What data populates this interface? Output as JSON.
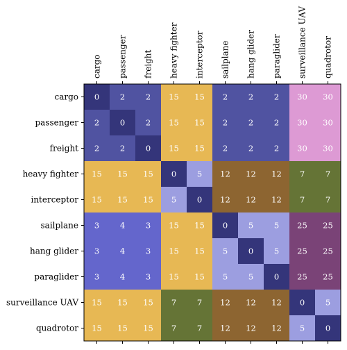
{
  "chart_data": {
    "type": "heatmap",
    "title": "",
    "xlabel": "",
    "ylabel": "",
    "x_categories": [
      "cargo",
      "passenger",
      "freight",
      "heavy fighter",
      "interceptor",
      "sailplane",
      "hang glider",
      "paraglider",
      "surveillance UAV",
      "quadrotor"
    ],
    "y_categories": [
      "cargo",
      "passenger",
      "freight",
      "heavy fighter",
      "interceptor",
      "sailplane",
      "hang glider",
      "paraglider",
      "surveillance UAV",
      "quadrotor"
    ],
    "x_tick_position": "top",
    "values": [
      [
        0,
        2,
        2,
        15,
        15,
        2,
        2,
        2,
        30,
        30
      ],
      [
        2,
        0,
        2,
        15,
        15,
        2,
        2,
        2,
        30,
        30
      ],
      [
        2,
        2,
        0,
        15,
        15,
        2,
        2,
        2,
        30,
        30
      ],
      [
        15,
        15,
        15,
        0,
        5,
        12,
        12,
        12,
        7,
        7
      ],
      [
        15,
        15,
        15,
        5,
        0,
        12,
        12,
        12,
        7,
        7
      ],
      [
        3,
        4,
        3,
        15,
        15,
        0,
        5,
        5,
        25,
        25
      ],
      [
        3,
        4,
        3,
        15,
        15,
        5,
        0,
        5,
        25,
        25
      ],
      [
        3,
        4,
        3,
        15,
        15,
        5,
        5,
        0,
        25,
        25
      ],
      [
        15,
        15,
        15,
        7,
        7,
        12,
        12,
        12,
        0,
        5
      ],
      [
        15,
        15,
        15,
        7,
        7,
        12,
        12,
        12,
        5,
        0
      ]
    ],
    "value_colors": {
      "0": "#34357a",
      "2": "#5053a1",
      "3": "#6466cc",
      "4": "#6466cc",
      "5": "#9c9ee0",
      "7": "#657436",
      "12": "#8d6531",
      "15": "#e7b854",
      "25": "#7a4377",
      "30": "#dd9ad4"
    },
    "grid": false,
    "legend": "none"
  }
}
